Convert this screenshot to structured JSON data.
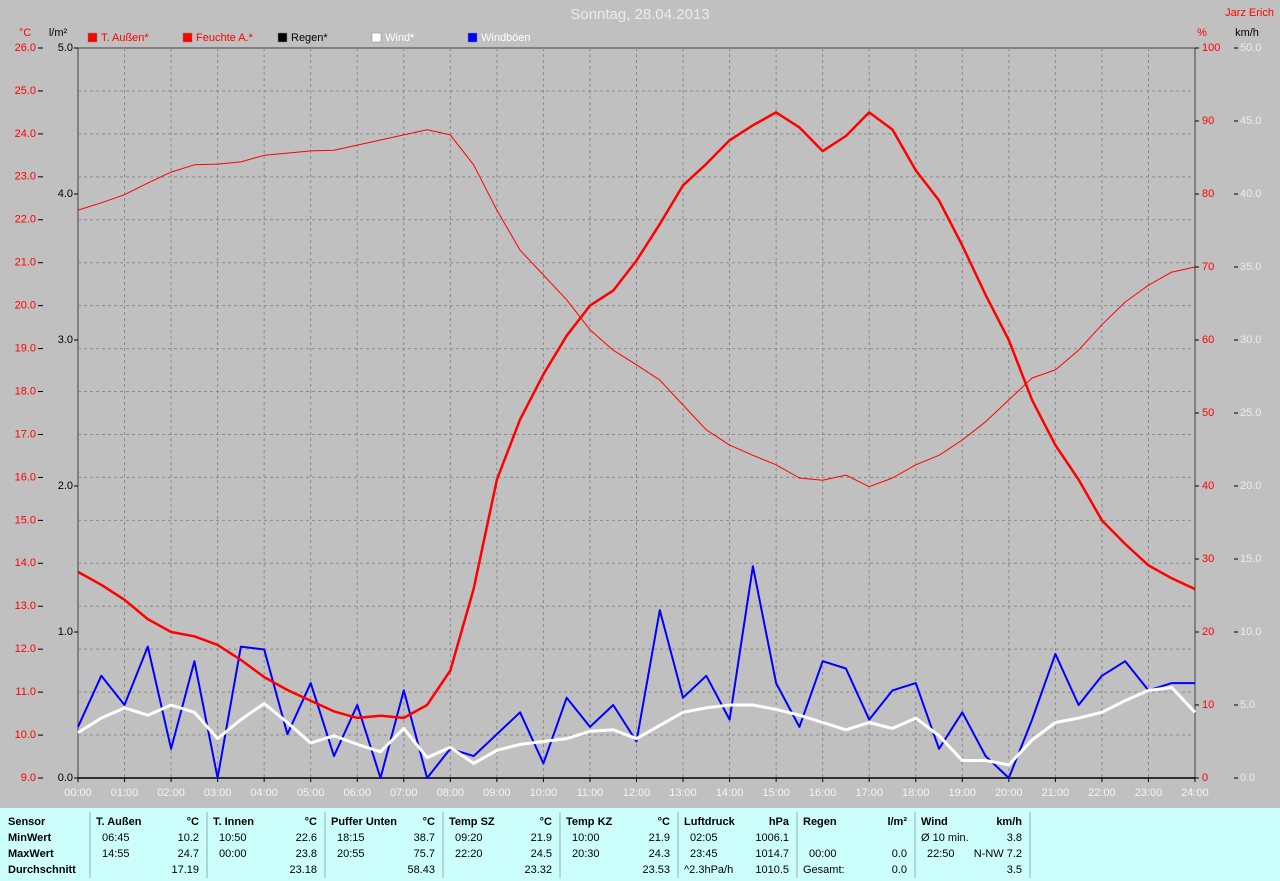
{
  "chart_data": {
    "type": "line",
    "title": "Sonntag, 28.04.2013",
    "credit": "Jarz Erich",
    "grid": true,
    "xlim": [
      0,
      24
    ],
    "xticks": [
      {
        "value": 0,
        "label": "00:00"
      },
      {
        "value": 1,
        "label": "01:00"
      },
      {
        "value": 2,
        "label": "02:00"
      },
      {
        "value": 3,
        "label": "03:00"
      },
      {
        "value": 4,
        "label": "04:00"
      },
      {
        "value": 5,
        "label": "05:00"
      },
      {
        "value": 6,
        "label": "06:00"
      },
      {
        "value": 7,
        "label": "07:00"
      },
      {
        "value": 8,
        "label": "08:00"
      },
      {
        "value": 9,
        "label": "09:00"
      },
      {
        "value": 10,
        "label": "10:00"
      },
      {
        "value": 11,
        "label": "11:00"
      },
      {
        "value": 12,
        "label": "12:00"
      },
      {
        "value": 13,
        "label": "13:00"
      },
      {
        "value": 14,
        "label": "14:00"
      },
      {
        "value": 15,
        "label": "15:00"
      },
      {
        "value": 16,
        "label": "16:00"
      },
      {
        "value": 17,
        "label": "17:00"
      },
      {
        "value": 18,
        "label": "18:00"
      },
      {
        "value": 19,
        "label": "19:00"
      },
      {
        "value": 20,
        "label": "20:00"
      },
      {
        "value": 21,
        "label": "21:00"
      },
      {
        "value": 22,
        "label": "22:00"
      },
      {
        "value": 23,
        "label": "23:00"
      },
      {
        "value": 24,
        "label": "24:00"
      }
    ],
    "axes": [
      {
        "unit": "°C",
        "lim": [
          9,
          26
        ],
        "ticks": [
          {
            "value": 9,
            "label": "9.0"
          },
          {
            "value": 10,
            "label": "10.0"
          },
          {
            "value": 11,
            "label": "11.0"
          },
          {
            "value": 12,
            "label": "12.0"
          },
          {
            "value": 13,
            "label": "13.0"
          },
          {
            "value": 14,
            "label": "14.0"
          },
          {
            "value": 15,
            "label": "15.0"
          },
          {
            "value": 16,
            "label": "16.0"
          },
          {
            "value": 17,
            "label": "17.0"
          },
          {
            "value": 18,
            "label": "18.0"
          },
          {
            "value": 19,
            "label": "19.0"
          },
          {
            "value": 20,
            "label": "20.0"
          },
          {
            "value": 21,
            "label": "21.0"
          },
          {
            "value": 22,
            "label": "22.0"
          },
          {
            "value": 23,
            "label": "23.0"
          },
          {
            "value": 24,
            "label": "24.0"
          },
          {
            "value": 25,
            "label": "25.0"
          },
          {
            "value": 26,
            "label": "26.0"
          }
        ]
      },
      {
        "unit": "l/m²",
        "lim": [
          0,
          5
        ],
        "ticks": [
          {
            "value": 0,
            "label": "0.0"
          },
          {
            "value": 1,
            "label": "1.0"
          },
          {
            "value": 2,
            "label": "2.0"
          },
          {
            "value": 3,
            "label": "3.0"
          },
          {
            "value": 4,
            "label": "4.0"
          },
          {
            "value": 5,
            "label": "5.0"
          }
        ]
      },
      {
        "unit": "%",
        "lim": [
          0,
          100
        ],
        "ticks": [
          0,
          10,
          20,
          30,
          40,
          50,
          60,
          70,
          80,
          90,
          100
        ]
      },
      {
        "unit": "km/h",
        "lim": [
          0,
          50
        ],
        "ticks": [
          {
            "value": 0,
            "label": "0.0"
          },
          {
            "value": 5,
            "label": "5.0"
          },
          {
            "value": 10,
            "label": "10.0"
          },
          {
            "value": 15,
            "label": "15.0"
          },
          {
            "value": 20,
            "label": "20.0"
          },
          {
            "value": 25,
            "label": "25.0"
          },
          {
            "value": 30,
            "label": "30.0"
          },
          {
            "value": 35,
            "label": "35.0"
          },
          {
            "value": 40,
            "label": "40.0"
          },
          {
            "value": 45,
            "label": "45.0"
          },
          {
            "value": 50,
            "label": "50.0"
          }
        ]
      }
    ],
    "x": [
      0,
      0.5,
      1,
      1.5,
      2,
      2.5,
      3,
      3.5,
      4,
      4.5,
      5,
      5.5,
      6,
      6.5,
      7,
      7.5,
      8,
      8.5,
      9,
      9.5,
      10,
      10.5,
      11,
      11.5,
      12,
      12.5,
      13,
      13.5,
      14,
      14.5,
      15,
      15.5,
      16,
      16.5,
      17,
      17.5,
      18,
      18.5,
      19,
      19.5,
      20,
      20.5,
      21,
      21.5,
      22,
      22.5,
      23,
      23.5,
      24
    ],
    "series": [
      {
        "name": "T. Außen*",
        "color": "#ff0000",
        "axis": 0,
        "values": [
          13.8,
          13.5,
          13.15,
          12.7,
          12.4,
          12.3,
          12.1,
          11.75,
          11.35,
          11.05,
          10.8,
          10.55,
          10.4,
          10.45,
          10.4,
          10.7,
          11.5,
          13.4,
          15.95,
          17.35,
          18.4,
          19.3,
          20.0,
          20.35,
          21.05,
          21.9,
          22.8,
          23.3,
          23.85,
          24.2,
          24.5,
          24.15,
          23.6,
          23.95,
          24.5,
          24.1,
          23.15,
          22.45,
          21.4,
          20.25,
          19.2,
          17.8,
          16.75,
          15.95,
          15.0,
          14.45,
          13.95,
          13.65,
          13.4
        ]
      },
      {
        "name": "Feuchte A.*",
        "color": "#ff0000",
        "axis": 2,
        "values": [
          77.8,
          78.8,
          79.9,
          81.5,
          83.0,
          84.0,
          84.1,
          84.4,
          85.3,
          85.6,
          85.9,
          86.0,
          86.7,
          87.4,
          88.1,
          88.8,
          88.1,
          84.0,
          77.8,
          72.3,
          68.9,
          65.5,
          61.4,
          58.6,
          56.6,
          54.5,
          51.1,
          47.7,
          45.6,
          44.2,
          42.9,
          41.1,
          40.8,
          41.5,
          39.9,
          41.1,
          42.9,
          44.2,
          46.3,
          48.8,
          51.8,
          54.8,
          55.9,
          58.6,
          62.1,
          65.2,
          67.5,
          69.3,
          70.0
        ]
      },
      {
        "name": "Regen*",
        "color": "#000000",
        "axis": 1,
        "values": [
          0,
          0,
          0,
          0,
          0,
          0,
          0,
          0,
          0,
          0,
          0,
          0,
          0,
          0,
          0,
          0,
          0,
          0,
          0,
          0,
          0,
          0,
          0,
          0,
          0,
          0,
          0,
          0,
          0,
          0,
          0,
          0,
          0,
          0,
          0,
          0,
          0,
          0,
          0,
          0,
          0,
          0,
          0,
          0,
          0,
          0,
          0,
          0,
          0
        ]
      },
      {
        "name": "Wind*",
        "color": "#ffffff",
        "axis": 3,
        "values": [
          3.1,
          4.1,
          4.8,
          4.3,
          5.0,
          4.5,
          2.7,
          4.0,
          5.1,
          3.8,
          2.4,
          2.9,
          2.3,
          1.8,
          3.4,
          1.4,
          2.1,
          1.0,
          1.9,
          2.3,
          2.5,
          2.7,
          3.2,
          3.3,
          2.7,
          3.6,
          4.5,
          4.8,
          5.0,
          5.0,
          4.7,
          4.3,
          3.8,
          3.3,
          3.8,
          3.4,
          4.1,
          2.9,
          1.2,
          1.2,
          0.9,
          2.6,
          3.8,
          4.1,
          4.5,
          5.3,
          6.0,
          6.2,
          4.5
        ]
      },
      {
        "name": "Windböen",
        "color": "#0000ff",
        "axis": 3,
        "values": [
          3.5,
          7.0,
          5.0,
          9.0,
          2.0,
          8.0,
          0.0,
          9.0,
          8.8,
          3.0,
          6.5,
          1.5,
          5.0,
          0.0,
          6.0,
          0.0,
          2.0,
          1.5,
          3.0,
          4.5,
          1.0,
          5.5,
          3.5,
          5.0,
          2.5,
          11.5,
          5.5,
          7.0,
          4.0,
          14.5,
          6.5,
          3.5,
          8.0,
          7.5,
          4.0,
          6.0,
          6.5,
          2.0,
          4.5,
          1.5,
          0.0,
          4.0,
          8.5,
          5.0,
          7.0,
          8.0,
          6.0,
          6.5,
          6.5
        ]
      }
    ]
  },
  "table": {
    "corner": "Sensor",
    "columns": [
      {
        "name": "T. Außen",
        "unit": "°C"
      },
      {
        "name": "T. Innen",
        "unit": "°C"
      },
      {
        "name": "Puffer Unten",
        "unit": "°C"
      },
      {
        "name": "Temp SZ",
        "unit": "°C"
      },
      {
        "name": "Temp KZ",
        "unit": "°C"
      },
      {
        "name": "Luftdruck",
        "unit": "hPa"
      },
      {
        "name": "Regen",
        "unit": "l/m²"
      },
      {
        "name": "Wind",
        "unit": "km/h"
      }
    ],
    "rows": [
      {
        "label": "MinWert",
        "cells": [
          {
            "time": "06:45",
            "value": "10.2"
          },
          {
            "time": "10:50",
            "value": "22.6"
          },
          {
            "time": "18:15",
            "value": "38.7"
          },
          {
            "time": "09:20",
            "value": "21.9"
          },
          {
            "time": "10:00",
            "value": "21.9"
          },
          {
            "time": "02:05",
            "value": "1006.1"
          },
          {},
          {
            "time": "Ø 10 min.",
            "value": "3.8"
          }
        ]
      },
      {
        "label": "MaxWert",
        "cells": [
          {
            "time": "14:55",
            "value": "24.7"
          },
          {
            "time": "00:00",
            "value": "23.8"
          },
          {
            "time": "20:55",
            "value": "75.7"
          },
          {
            "time": "22:20",
            "value": "24.5"
          },
          {
            "time": "20:30",
            "value": "24.3"
          },
          {
            "time": "23:45",
            "value": "1014.7"
          },
          {
            "time": "00:00",
            "value": "0.0"
          },
          {
            "time": "22:50",
            "value": "N-NW 7.2"
          }
        ]
      },
      {
        "label": "Durchschnitt",
        "cells": [
          {
            "value": "17.19"
          },
          {
            "value": "23.18"
          },
          {
            "value": "58.43"
          },
          {
            "value": "23.32"
          },
          {
            "value": "23.53"
          },
          {
            "time": "^2.3hPa/h",
            "value": "1010.5"
          },
          {
            "time": "Gesamt:",
            "value": "0.0"
          },
          {
            "value": "3.5"
          }
        ]
      }
    ]
  }
}
